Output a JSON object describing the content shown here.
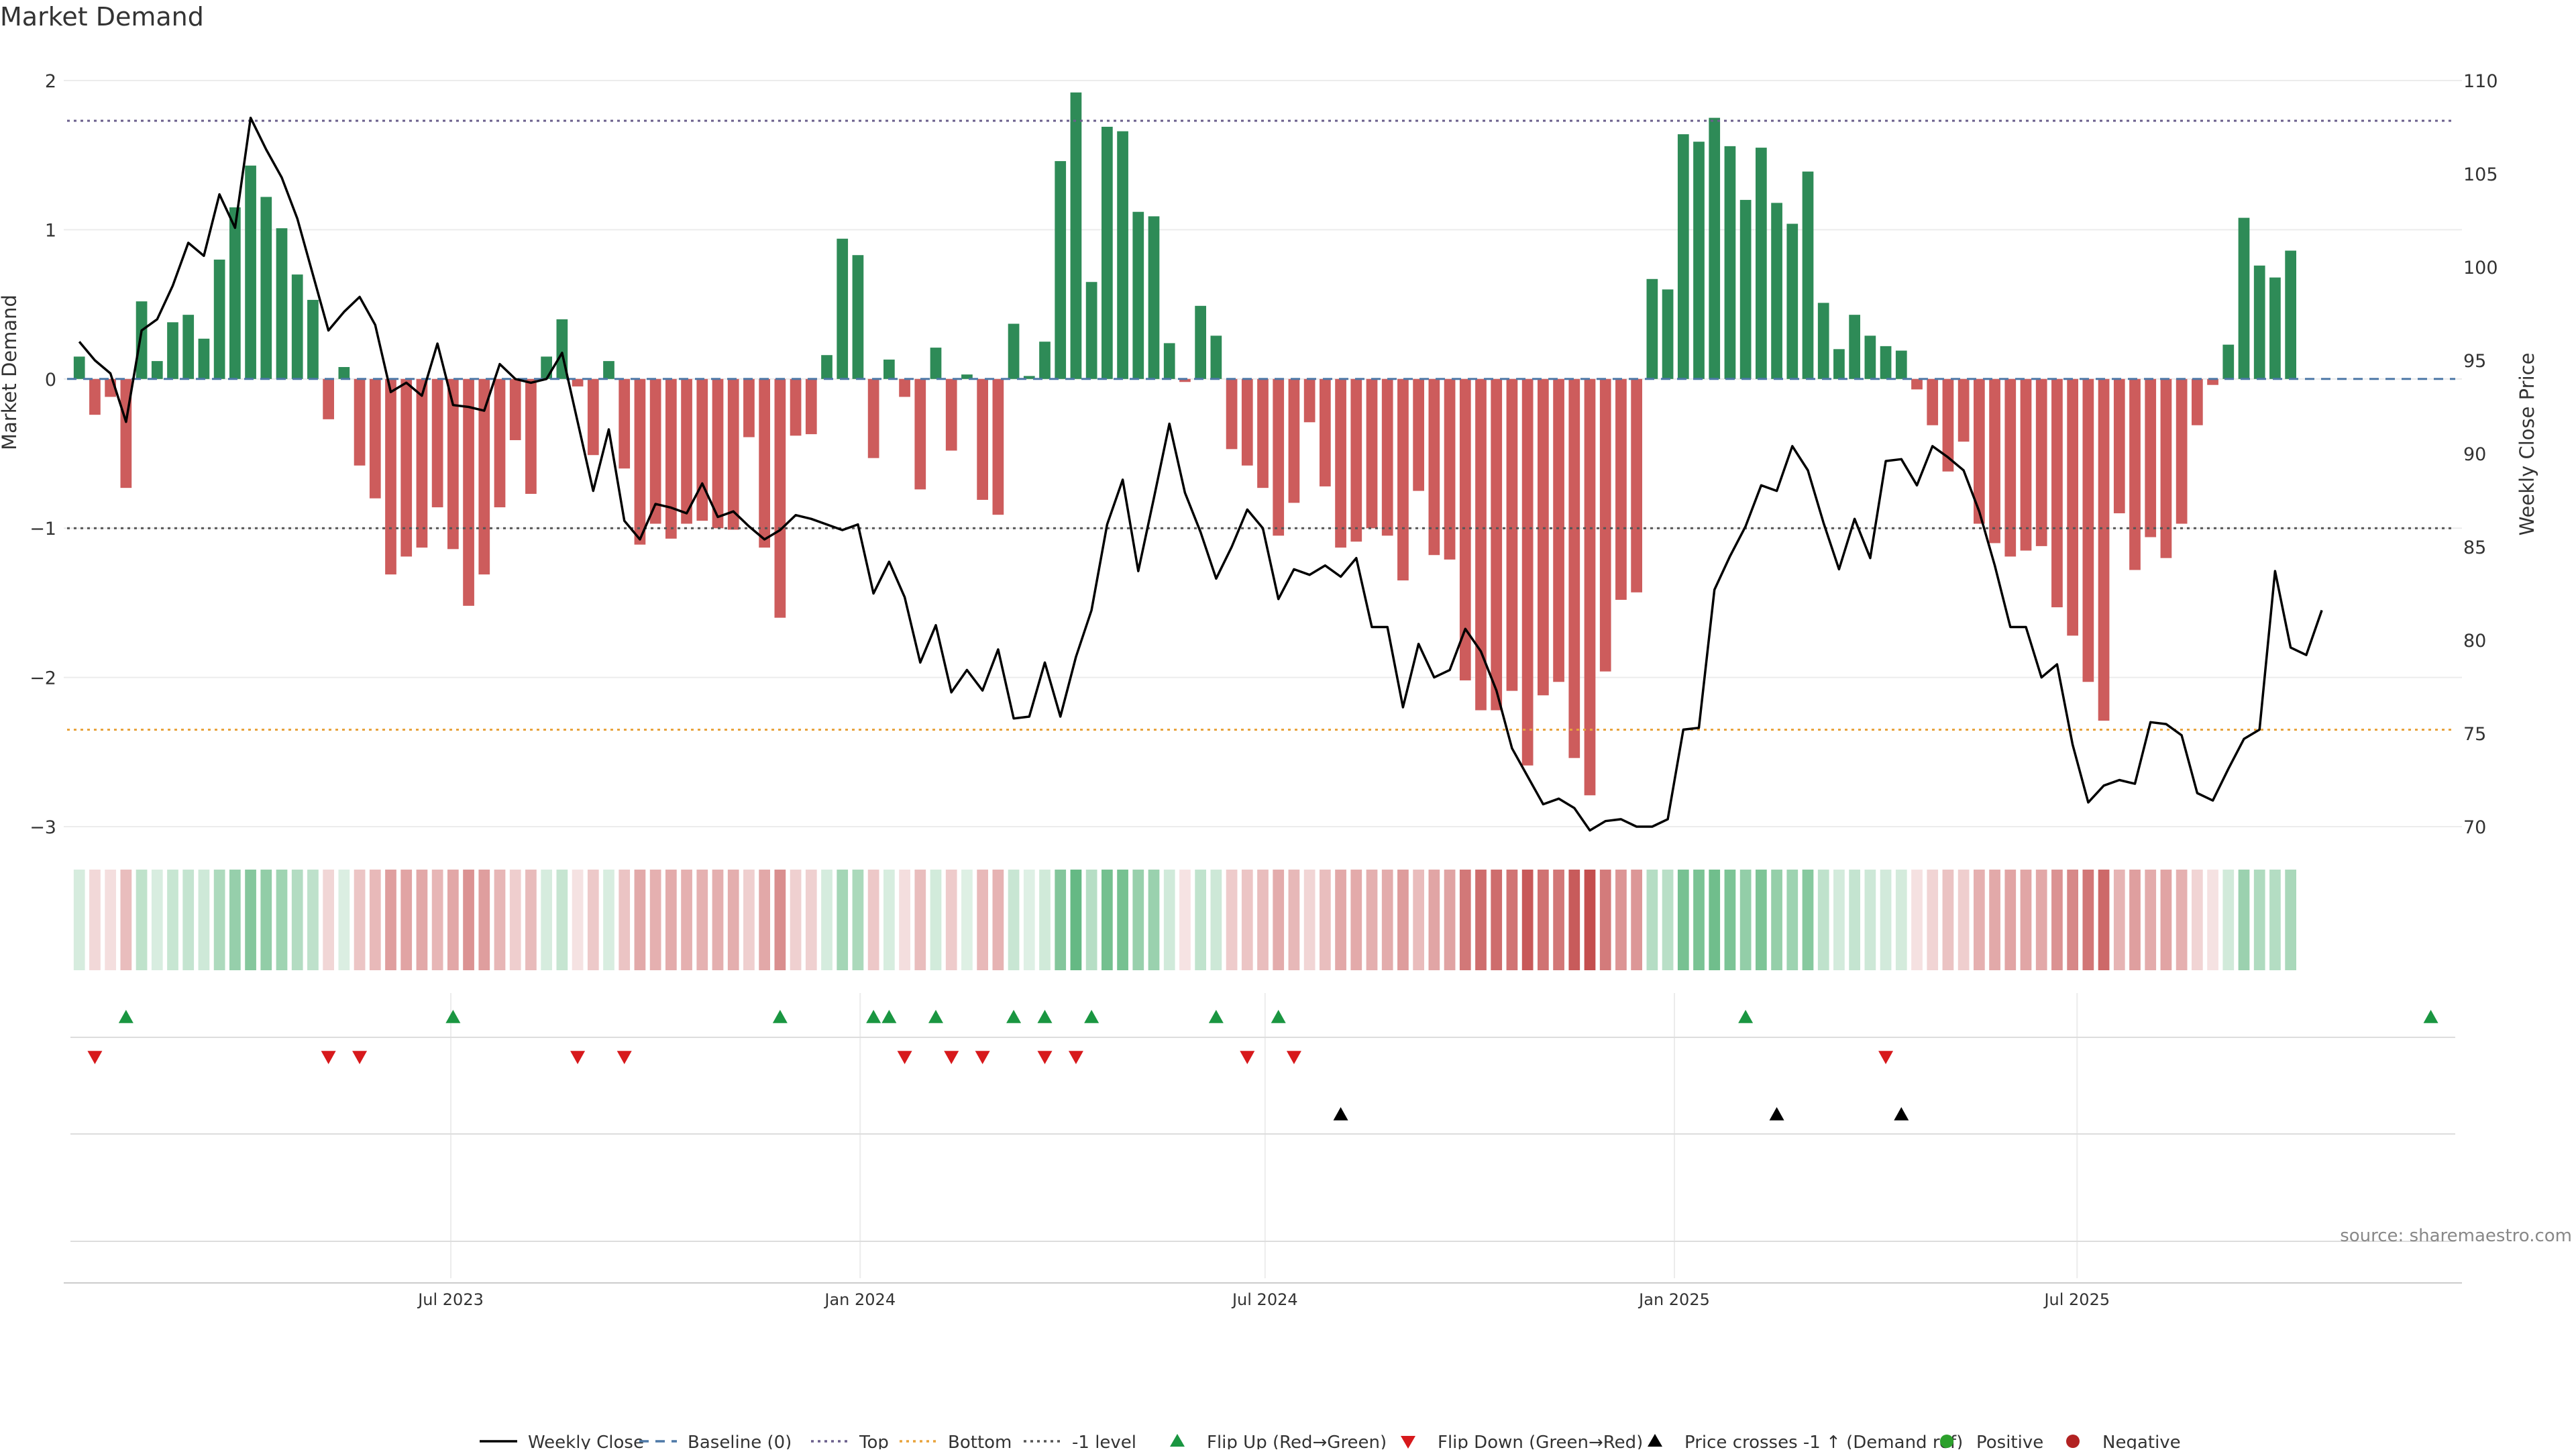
{
  "chart_data": {
    "type": "bar",
    "title": "Market Demand",
    "ylabel_left": "Market Demand",
    "ylabel_right": "Weekly Close Price",
    "source": "source: sharemaestro.com",
    "ylim_left": [
      -3,
      2
    ],
    "ylim_right": [
      70,
      110
    ],
    "yticks_left": [
      2,
      1,
      0,
      -1,
      -2,
      -3
    ],
    "yticks_left_labels": [
      "2",
      "1",
      "0",
      "−1",
      "−2",
      "−3"
    ],
    "yticks_right": [
      110,
      105,
      100,
      95,
      90,
      85,
      80,
      75,
      70
    ],
    "yticks_right_labels": [
      "110",
      "105",
      "100",
      "95",
      "90",
      "85",
      "80",
      "75",
      "70"
    ],
    "x_start": "2023-01-08",
    "x_end": "2025-12-21",
    "xticks": [
      {
        "date": "2023-07-01",
        "label": "Jul 2023"
      },
      {
        "date": "2024-01-01",
        "label": "Jan 2024"
      },
      {
        "date": "2024-07-01",
        "label": "Jul 2024"
      },
      {
        "date": "2025-01-01",
        "label": "Jan 2025"
      },
      {
        "date": "2025-07-01",
        "label": "Jul 2025"
      }
    ],
    "reference_lines": [
      {
        "name": "Top",
        "value": 1.73,
        "color": "#6a5f8c",
        "style": "dotted"
      },
      {
        "name": "Bottom",
        "value": -2.35,
        "color": "#e8a33c",
        "style": "dotted"
      },
      {
        "name": "-1 level",
        "value": -1.0,
        "color": "#555555",
        "style": "dotted"
      },
      {
        "name": "Baseline (0)",
        "value": 0,
        "color": "#4e79a7",
        "style": "dashed"
      }
    ],
    "colors": {
      "positive": "#2e8b57",
      "negative": "#cd5c5c",
      "price": "#000000",
      "flip_up": "#1a9641",
      "flip_down": "#d7191c",
      "cross": "#000000",
      "positive_dot": "#2ca02c",
      "negative_dot": "#b22222"
    },
    "weeks_first": "2023-01-15",
    "week_step_days": 7,
    "demand": [
      0.15,
      -0.24,
      -0.12,
      -0.73,
      0.52,
      0.12,
      0.38,
      0.43,
      0.27,
      0.8,
      1.15,
      1.43,
      1.22,
      1.01,
      0.7,
      0.53,
      -0.27,
      0.08,
      -0.58,
      -0.8,
      -1.31,
      -1.19,
      -1.13,
      -0.86,
      -1.14,
      -1.52,
      -1.31,
      -0.86,
      -0.41,
      -0.77,
      0.15,
      0.4,
      -0.05,
      -0.51,
      0.12,
      -0.6,
      -1.11,
      -0.97,
      -1.07,
      -0.97,
      -0.95,
      -1.0,
      -1.01,
      -0.39,
      -1.13,
      -1.6,
      -0.38,
      -0.37,
      0.16,
      0.94,
      0.83,
      -0.53,
      0.13,
      -0.12,
      -0.74,
      0.21,
      -0.48,
      0.03,
      -0.81,
      -0.91,
      0.37,
      0.02,
      0.25,
      1.46,
      1.92,
      0.65,
      1.69,
      1.66,
      1.12,
      1.09,
      0.24,
      -0.02,
      0.49,
      0.29,
      -0.47,
      -0.58,
      -0.73,
      -1.05,
      -0.83,
      -0.29,
      -0.72,
      -1.13,
      -1.09,
      -1.0,
      -1.05,
      -1.35,
      -0.75,
      -1.18,
      -1.21,
      -2.02,
      -2.22,
      -2.22,
      -2.09,
      -2.59,
      -2.12,
      -2.03,
      -2.54,
      -2.79,
      -1.96,
      -1.48,
      -1.43,
      0.67,
      0.6,
      1.64,
      1.59,
      1.75,
      1.56,
      1.2,
      1.55,
      1.18,
      1.04,
      1.39,
      0.51,
      0.2,
      0.43,
      0.29,
      0.22,
      0.19,
      -0.07,
      -0.31,
      -0.62,
      -0.42,
      -0.97,
      -1.1,
      -1.19,
      -1.15,
      -1.12,
      -1.53,
      -1.72,
      -2.03,
      -2.29,
      -0.9,
      -1.28,
      -1.06,
      -1.2,
      -0.97,
      -0.31,
      -0.04,
      0.23,
      1.08,
      0.76,
      0.68,
      0.86
    ],
    "price": [
      96.0,
      95.0,
      94.3,
      91.7,
      96.6,
      97.2,
      99.0,
      101.3,
      100.6,
      103.9,
      102.1,
      108.0,
      106.3,
      104.8,
      102.6,
      99.6,
      96.6,
      97.6,
      98.4,
      96.9,
      93.3,
      93.8,
      93.1,
      95.9,
      92.6,
      92.5,
      92.3,
      94.8,
      94.0,
      93.8,
      94.0,
      95.4,
      91.7,
      88.0,
      91.3,
      86.4,
      85.4,
      87.3,
      87.1,
      86.8,
      88.4,
      86.6,
      86.9,
      86.1,
      85.4,
      85.9,
      86.7,
      86.5,
      86.2,
      85.9,
      86.2,
      82.5,
      84.2,
      82.3,
      78.8,
      80.8,
      77.2,
      78.4,
      77.3,
      79.5,
      75.8,
      75.9,
      78.8,
      75.9,
      79.1,
      81.6,
      86.2,
      88.6,
      83.7,
      87.6,
      91.6,
      87.9,
      85.8,
      83.3,
      85.0,
      87.0,
      86.0,
      82.2,
      83.8,
      83.5,
      84.0,
      83.4,
      84.4,
      80.7,
      80.7,
      76.4,
      79.8,
      78.0,
      78.4,
      80.6,
      79.4,
      77.3,
      74.2,
      72.7,
      71.2,
      71.5,
      71.0,
      69.8,
      70.3,
      70.4,
      70.0,
      70.0,
      70.4,
      75.2,
      75.3,
      82.7,
      84.5,
      86.1,
      88.3,
      88.0,
      90.4,
      89.1,
      86.3,
      83.8,
      86.5,
      84.4,
      89.6,
      89.7,
      88.3,
      90.4,
      89.8,
      89.1,
      86.9,
      84.0,
      80.7,
      80.7,
      78.0,
      78.7,
      74.4,
      71.3,
      72.2,
      72.5,
      72.3,
      75.6,
      75.5,
      74.9,
      71.8,
      71.4,
      73.1,
      74.7,
      75.2,
      83.7,
      79.6,
      79.2,
      81.6
    ],
    "panels": [
      {
        "name": "Flip Up (Red→Green)",
        "row": "flip-up",
        "dates": [
          "2023-02-05",
          "2023-07-02",
          "2023-11-26",
          "2024-01-07",
          "2024-01-14",
          "2024-02-04",
          "2024-03-10",
          "2024-03-24",
          "2024-04-14",
          "2024-06-09",
          "2024-07-07",
          "2025-02-02",
          "2025-12-07"
        ]
      },
      {
        "name": "Flip Down (Green→Red)",
        "row": "flip-down",
        "dates": [
          "2023-01-22",
          "2023-05-07",
          "2023-05-21",
          "2023-08-27",
          "2023-09-17",
          "2024-01-21",
          "2024-02-11",
          "2024-02-25",
          "2024-03-24",
          "2024-04-07",
          "2024-06-23",
          "2024-07-14",
          "2025-04-06"
        ]
      },
      {
        "name": "Price crosses -1 ↑ (Demand ref)",
        "row": "cross",
        "dates": [
          "2024-08-04",
          "2025-02-16",
          "2025-04-13"
        ]
      }
    ],
    "legend": [
      {
        "key": "price",
        "label": "Weekly Close"
      },
      {
        "key": "baseline",
        "label": "Baseline (0)"
      },
      {
        "key": "top",
        "label": "Top"
      },
      {
        "key": "bottom",
        "label": "Bottom"
      },
      {
        "key": "minus1",
        "label": "-1 level"
      },
      {
        "key": "flipup",
        "label": "Flip Up (Red→Green)"
      },
      {
        "key": "flipdown",
        "label": "Flip Down (Green→Red)"
      },
      {
        "key": "cross",
        "label": "Price crosses -1 ↑ (Demand ref)"
      },
      {
        "key": "positive",
        "label": "Positive"
      },
      {
        "key": "negative",
        "label": "Negative"
      }
    ],
    "legend_position": "bottom-center",
    "grid": true
  }
}
